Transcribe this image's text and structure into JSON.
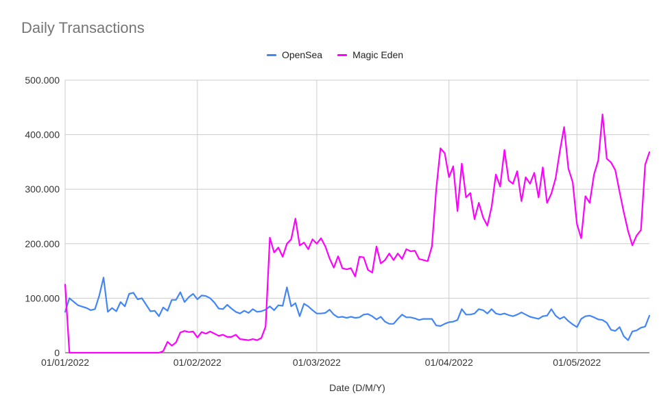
{
  "chart_data": {
    "type": "line",
    "title": "Daily Transactions",
    "xlabel": "Date (D/M/Y)",
    "ylabel": "",
    "ylim": [
      0,
      500000
    ],
    "yticks": [
      0,
      100000,
      200000,
      300000,
      400000,
      500000
    ],
    "ytick_labels": [
      "0",
      "100.000",
      "200.000",
      "300.000",
      "400.000",
      "500.000"
    ],
    "x_range": [
      "2022-01-01",
      "2022-05-18"
    ],
    "xticks": [
      "2022-01-01",
      "2022-02-01",
      "2022-03-01",
      "2022-04-01",
      "2022-05-01"
    ],
    "xtick_labels": [
      "01/01/2022",
      "01/02/2022",
      "01/03/2022",
      "01/04/2022",
      "01/05/2022"
    ],
    "grid": true,
    "legend_position": "top-center",
    "series": [
      {
        "name": "OpenSea",
        "color": "#4285f4",
        "points": [
          [
            "2022-01-01",
            75000
          ],
          [
            "2022-01-02",
            100000
          ],
          [
            "2022-01-04",
            87000
          ],
          [
            "2022-01-06",
            82000
          ],
          [
            "2022-01-07",
            78000
          ],
          [
            "2022-01-08",
            80000
          ],
          [
            "2022-01-09",
            105000
          ],
          [
            "2022-01-10",
            138000
          ],
          [
            "2022-01-11",
            75000
          ],
          [
            "2022-01-12",
            82000
          ],
          [
            "2022-01-13",
            76000
          ],
          [
            "2022-01-14",
            93000
          ],
          [
            "2022-01-15",
            85000
          ],
          [
            "2022-01-16",
            108000
          ],
          [
            "2022-01-17",
            110000
          ],
          [
            "2022-01-18",
            98000
          ],
          [
            "2022-01-19",
            100000
          ],
          [
            "2022-01-20",
            88000
          ],
          [
            "2022-01-21",
            76000
          ],
          [
            "2022-01-22",
            77000
          ],
          [
            "2022-01-23",
            67000
          ],
          [
            "2022-01-24",
            83000
          ],
          [
            "2022-01-25",
            77000
          ],
          [
            "2022-01-26",
            97000
          ],
          [
            "2022-01-27",
            97000
          ],
          [
            "2022-01-28",
            111000
          ],
          [
            "2022-01-29",
            93000
          ],
          [
            "2022-01-30",
            102000
          ],
          [
            "2022-01-31",
            108000
          ],
          [
            "2022-02-01",
            98000
          ],
          [
            "2022-02-02",
            105000
          ],
          [
            "2022-02-03",
            104000
          ],
          [
            "2022-02-04",
            100000
          ],
          [
            "2022-02-05",
            92000
          ],
          [
            "2022-02-06",
            81000
          ],
          [
            "2022-02-07",
            80000
          ],
          [
            "2022-02-08",
            88000
          ],
          [
            "2022-02-09",
            81000
          ],
          [
            "2022-02-10",
            75000
          ],
          [
            "2022-02-11",
            72000
          ],
          [
            "2022-02-12",
            77000
          ],
          [
            "2022-02-13",
            73000
          ],
          [
            "2022-02-14",
            80000
          ],
          [
            "2022-02-15",
            75000
          ],
          [
            "2022-02-16",
            76000
          ],
          [
            "2022-02-17",
            79000
          ],
          [
            "2022-02-18",
            85000
          ],
          [
            "2022-02-19",
            78000
          ],
          [
            "2022-02-20",
            87000
          ],
          [
            "2022-02-21",
            86000
          ],
          [
            "2022-02-22",
            120000
          ],
          [
            "2022-02-23",
            85000
          ],
          [
            "2022-02-24",
            91000
          ],
          [
            "2022-02-25",
            67000
          ],
          [
            "2022-02-26",
            90000
          ],
          [
            "2022-02-27",
            85000
          ],
          [
            "2022-02-28",
            78000
          ],
          [
            "2022-03-01",
            72000
          ],
          [
            "2022-03-02",
            72000
          ],
          [
            "2022-03-03",
            73000
          ],
          [
            "2022-03-04",
            79000
          ],
          [
            "2022-03-05",
            70000
          ],
          [
            "2022-03-06",
            65000
          ],
          [
            "2022-03-07",
            66000
          ],
          [
            "2022-03-08",
            64000
          ],
          [
            "2022-03-09",
            66000
          ],
          [
            "2022-03-10",
            64000
          ],
          [
            "2022-03-11",
            65000
          ],
          [
            "2022-03-12",
            70000
          ],
          [
            "2022-03-13",
            71000
          ],
          [
            "2022-03-14",
            67000
          ],
          [
            "2022-03-15",
            61000
          ],
          [
            "2022-03-16",
            66000
          ],
          [
            "2022-03-17",
            57000
          ],
          [
            "2022-03-18",
            53000
          ],
          [
            "2022-03-19",
            53000
          ],
          [
            "2022-03-20",
            62000
          ],
          [
            "2022-03-21",
            70000
          ],
          [
            "2022-03-22",
            65000
          ],
          [
            "2022-03-23",
            65000
          ],
          [
            "2022-03-24",
            63000
          ],
          [
            "2022-03-25",
            60000
          ],
          [
            "2022-03-26",
            62000
          ],
          [
            "2022-03-27",
            62000
          ],
          [
            "2022-03-28",
            62000
          ],
          [
            "2022-03-29",
            50000
          ],
          [
            "2022-03-30",
            49000
          ],
          [
            "2022-03-31",
            53000
          ],
          [
            "2022-04-01",
            56000
          ],
          [
            "2022-04-02",
            57000
          ],
          [
            "2022-04-03",
            60000
          ],
          [
            "2022-04-04",
            80000
          ],
          [
            "2022-04-05",
            70000
          ],
          [
            "2022-04-06",
            70000
          ],
          [
            "2022-04-07",
            72000
          ],
          [
            "2022-04-08",
            80000
          ],
          [
            "2022-04-09",
            78000
          ],
          [
            "2022-04-10",
            72000
          ],
          [
            "2022-04-11",
            80000
          ],
          [
            "2022-04-12",
            72000
          ],
          [
            "2022-04-13",
            70000
          ],
          [
            "2022-04-14",
            72000
          ],
          [
            "2022-04-15",
            69000
          ],
          [
            "2022-04-16",
            67000
          ],
          [
            "2022-04-17",
            70000
          ],
          [
            "2022-04-18",
            74000
          ],
          [
            "2022-04-19",
            70000
          ],
          [
            "2022-04-20",
            66000
          ],
          [
            "2022-04-21",
            64000
          ],
          [
            "2022-04-22",
            62000
          ],
          [
            "2022-04-23",
            67000
          ],
          [
            "2022-04-24",
            68000
          ],
          [
            "2022-04-25",
            80000
          ],
          [
            "2022-04-26",
            68000
          ],
          [
            "2022-04-27",
            62000
          ],
          [
            "2022-04-28",
            66000
          ],
          [
            "2022-04-29",
            58000
          ],
          [
            "2022-04-30",
            52000
          ],
          [
            "2022-05-01",
            47000
          ],
          [
            "2022-05-02",
            62000
          ],
          [
            "2022-05-03",
            67000
          ],
          [
            "2022-05-04",
            68000
          ],
          [
            "2022-05-05",
            65000
          ],
          [
            "2022-05-06",
            61000
          ],
          [
            "2022-05-07",
            60000
          ],
          [
            "2022-05-08",
            55000
          ],
          [
            "2022-05-09",
            42000
          ],
          [
            "2022-05-10",
            40000
          ],
          [
            "2022-05-11",
            47000
          ],
          [
            "2022-05-12",
            30000
          ],
          [
            "2022-05-13",
            23000
          ],
          [
            "2022-05-14",
            39000
          ],
          [
            "2022-05-15",
            41000
          ],
          [
            "2022-05-16",
            46000
          ],
          [
            "2022-05-17",
            48000
          ],
          [
            "2022-05-18",
            68000
          ]
        ]
      },
      {
        "name": "Magic Eden",
        "color": "#ff00ff",
        "points": [
          [
            "2022-01-01",
            125000
          ],
          [
            "2022-01-02",
            0
          ],
          [
            "2022-01-21",
            0
          ],
          [
            "2022-01-23",
            0
          ],
          [
            "2022-01-24",
            3000
          ],
          [
            "2022-01-25",
            20000
          ],
          [
            "2022-01-26",
            13000
          ],
          [
            "2022-01-27",
            19000
          ],
          [
            "2022-01-28",
            37000
          ],
          [
            "2022-01-29",
            40000
          ],
          [
            "2022-01-30",
            38000
          ],
          [
            "2022-01-31",
            39000
          ],
          [
            "2022-02-01",
            28000
          ],
          [
            "2022-02-02",
            38000
          ],
          [
            "2022-02-03",
            35000
          ],
          [
            "2022-02-04",
            39000
          ],
          [
            "2022-02-05",
            35000
          ],
          [
            "2022-02-06",
            31000
          ],
          [
            "2022-02-07",
            33000
          ],
          [
            "2022-02-08",
            29000
          ],
          [
            "2022-02-09",
            29000
          ],
          [
            "2022-02-10",
            33000
          ],
          [
            "2022-02-11",
            25000
          ],
          [
            "2022-02-12",
            24000
          ],
          [
            "2022-02-13",
            23000
          ],
          [
            "2022-02-14",
            25000
          ],
          [
            "2022-02-15",
            23000
          ],
          [
            "2022-02-16",
            27000
          ],
          [
            "2022-02-17",
            48000
          ],
          [
            "2022-02-18",
            211000
          ],
          [
            "2022-02-19",
            184000
          ],
          [
            "2022-02-20",
            193000
          ],
          [
            "2022-02-21",
            176000
          ],
          [
            "2022-02-22",
            200000
          ],
          [
            "2022-02-23",
            208000
          ],
          [
            "2022-02-24",
            246000
          ],
          [
            "2022-02-25",
            197000
          ],
          [
            "2022-02-26",
            202000
          ],
          [
            "2022-02-27",
            190000
          ],
          [
            "2022-02-28",
            208000
          ],
          [
            "2022-03-01",
            200000
          ],
          [
            "2022-03-02",
            210000
          ],
          [
            "2022-03-03",
            195000
          ],
          [
            "2022-03-04",
            173000
          ],
          [
            "2022-03-05",
            156000
          ],
          [
            "2022-03-06",
            177000
          ],
          [
            "2022-03-07",
            155000
          ],
          [
            "2022-03-08",
            153000
          ],
          [
            "2022-03-09",
            155000
          ],
          [
            "2022-03-10",
            140000
          ],
          [
            "2022-03-11",
            176000
          ],
          [
            "2022-03-12",
            175000
          ],
          [
            "2022-03-13",
            152000
          ],
          [
            "2022-03-14",
            147000
          ],
          [
            "2022-03-15",
            195000
          ],
          [
            "2022-03-16",
            164000
          ],
          [
            "2022-03-17",
            170000
          ],
          [
            "2022-03-18",
            182000
          ],
          [
            "2022-03-19",
            170000
          ],
          [
            "2022-03-20",
            182000
          ],
          [
            "2022-03-21",
            172000
          ],
          [
            "2022-03-22",
            190000
          ],
          [
            "2022-03-23",
            186000
          ],
          [
            "2022-03-24",
            187000
          ],
          [
            "2022-03-25",
            172000
          ],
          [
            "2022-03-26",
            170000
          ],
          [
            "2022-03-27",
            168000
          ],
          [
            "2022-03-28",
            195000
          ],
          [
            "2022-03-29",
            300000
          ],
          [
            "2022-03-30",
            375000
          ],
          [
            "2022-03-31",
            366000
          ],
          [
            "2022-04-01",
            322000
          ],
          [
            "2022-04-02",
            342000
          ],
          [
            "2022-04-03",
            260000
          ],
          [
            "2022-04-04",
            347000
          ],
          [
            "2022-04-05",
            285000
          ],
          [
            "2022-04-06",
            293000
          ],
          [
            "2022-04-07",
            245000
          ],
          [
            "2022-04-08",
            275000
          ],
          [
            "2022-04-09",
            248000
          ],
          [
            "2022-04-10",
            233000
          ],
          [
            "2022-04-11",
            268000
          ],
          [
            "2022-04-12",
            327000
          ],
          [
            "2022-04-13",
            305000
          ],
          [
            "2022-04-14",
            372000
          ],
          [
            "2022-04-15",
            316000
          ],
          [
            "2022-04-16",
            310000
          ],
          [
            "2022-04-17",
            333000
          ],
          [
            "2022-04-18",
            278000
          ],
          [
            "2022-04-19",
            322000
          ],
          [
            "2022-04-20",
            310000
          ],
          [
            "2022-04-21",
            330000
          ],
          [
            "2022-04-22",
            285000
          ],
          [
            "2022-04-23",
            340000
          ],
          [
            "2022-04-24",
            275000
          ],
          [
            "2022-04-25",
            292000
          ],
          [
            "2022-04-26",
            320000
          ],
          [
            "2022-04-27",
            370000
          ],
          [
            "2022-04-28",
            414000
          ],
          [
            "2022-04-29",
            338000
          ],
          [
            "2022-04-30",
            313000
          ],
          [
            "2022-05-01",
            236000
          ],
          [
            "2022-05-02",
            210000
          ],
          [
            "2022-05-03",
            287000
          ],
          [
            "2022-05-04",
            275000
          ],
          [
            "2022-05-05",
            327000
          ],
          [
            "2022-05-06",
            353000
          ],
          [
            "2022-05-07",
            437000
          ],
          [
            "2022-05-08",
            356000
          ],
          [
            "2022-05-09",
            349000
          ],
          [
            "2022-05-10",
            335000
          ],
          [
            "2022-05-11",
            295000
          ],
          [
            "2022-05-12",
            257000
          ],
          [
            "2022-05-13",
            223000
          ],
          [
            "2022-05-14",
            197000
          ],
          [
            "2022-05-15",
            215000
          ],
          [
            "2022-05-16",
            225000
          ],
          [
            "2022-05-17",
            345000
          ],
          [
            "2022-05-18",
            368000
          ]
        ]
      }
    ]
  }
}
